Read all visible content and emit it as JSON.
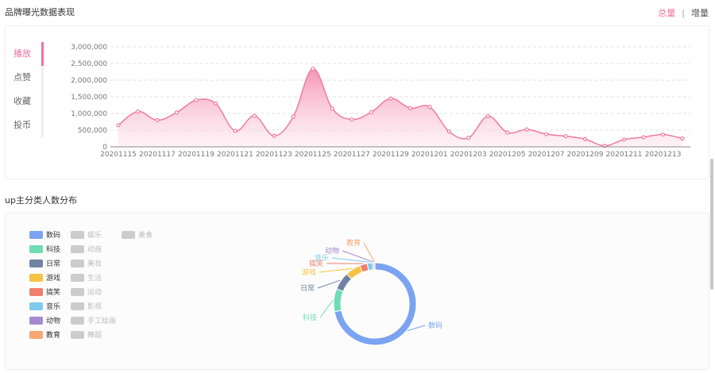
{
  "header": {
    "title": "品牌曝光数据表现",
    "toggle": {
      "active": "总量",
      "separator": "|",
      "inactive": "增量"
    }
  },
  "metric_tabs": [
    {
      "label": "播放",
      "active": true
    },
    {
      "label": "点赞",
      "active": false
    },
    {
      "label": "收藏",
      "active": false
    },
    {
      "label": "投币",
      "active": false
    }
  ],
  "section2": {
    "title": "up主分类人数分布"
  },
  "colors": {
    "accent": "#f0709b",
    "line": "#ef7aa0",
    "fill_top": "#f58fb0",
    "inactive": "#cccccc"
  },
  "chart_data": [
    {
      "type": "area",
      "x": [
        "20201115",
        "20201116",
        "20201117",
        "20201118",
        "20201119",
        "20201120",
        "20201121",
        "20201122",
        "20201123",
        "20201124",
        "20201125",
        "20201126",
        "20201127",
        "20201128",
        "20201129",
        "20201130",
        "20201201",
        "20201202",
        "20201203",
        "20201204",
        "20201205",
        "20201206",
        "20201207",
        "20201208",
        "20201209",
        "20201210",
        "20201211",
        "20201212",
        "20201213",
        "20201214"
      ],
      "values": [
        650000,
        1060000,
        800000,
        1030000,
        1400000,
        1300000,
        480000,
        930000,
        330000,
        910000,
        2340000,
        1150000,
        820000,
        1040000,
        1450000,
        1160000,
        1200000,
        460000,
        270000,
        920000,
        430000,
        520000,
        380000,
        320000,
        230000,
        30000,
        220000,
        290000,
        370000,
        250000
      ],
      "tick_labels": [
        "20201115",
        "20201117",
        "20201119",
        "20201121",
        "20201123",
        "20201125",
        "20201127",
        "20201129",
        "20201201",
        "20201203",
        "20201205",
        "20201207",
        "20201209",
        "20201211",
        "20201213"
      ],
      "y_ticks": [
        "0",
        "500,000",
        "1,000,000",
        "1,500,000",
        "2,000,000",
        "2,500,000",
        "3,000,000"
      ],
      "ylim": [
        0,
        3000000
      ],
      "grid": true,
      "smooth": true
    },
    {
      "type": "pie",
      "donut": true,
      "categories": [
        "数码",
        "科技",
        "日常",
        "游戏",
        "搞笑",
        "音乐",
        "动物",
        "教育",
        "娱乐",
        "动画",
        "美妆",
        "生活",
        "运动",
        "影视",
        "手工绘画",
        "舞蹈",
        "美食"
      ],
      "values": [
        72,
        9,
        7,
        6,
        3,
        2,
        0.6,
        0.4,
        0,
        0,
        0,
        0,
        0,
        0,
        0,
        0,
        0
      ],
      "colors": [
        "#7aa3f2",
        "#6fdcb5",
        "#7083a5",
        "#f5c343",
        "#f07f6e",
        "#7fcbee",
        "#a489d1",
        "#f6a772",
        "#cccccc",
        "#cccccc",
        "#cccccc",
        "#cccccc",
        "#cccccc",
        "#cccccc",
        "#cccccc",
        "#cccccc",
        "#cccccc"
      ],
      "active": [
        true,
        true,
        true,
        true,
        true,
        true,
        true,
        true,
        false,
        false,
        false,
        false,
        false,
        false,
        false,
        false,
        false
      ],
      "legend_placement": "left"
    }
  ]
}
